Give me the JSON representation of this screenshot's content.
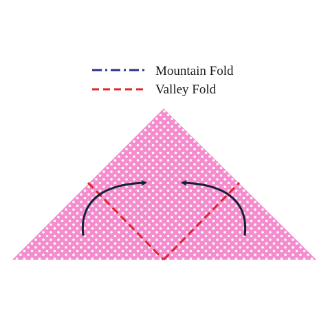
{
  "legend": {
    "mountain_label": "Mountain Fold",
    "valley_label": "Valley Fold"
  },
  "colors": {
    "mountain_line": "#2b2f8f",
    "valley_line": "#e0242c",
    "paper": "#f48ccd",
    "paper_dots": "#ffffff",
    "arrow": "#13213a",
    "background": "#ffffff"
  },
  "icons": {
    "left_arrow": "curved-arrow-right-icon",
    "right_arrow": "curved-arrow-left-icon"
  }
}
